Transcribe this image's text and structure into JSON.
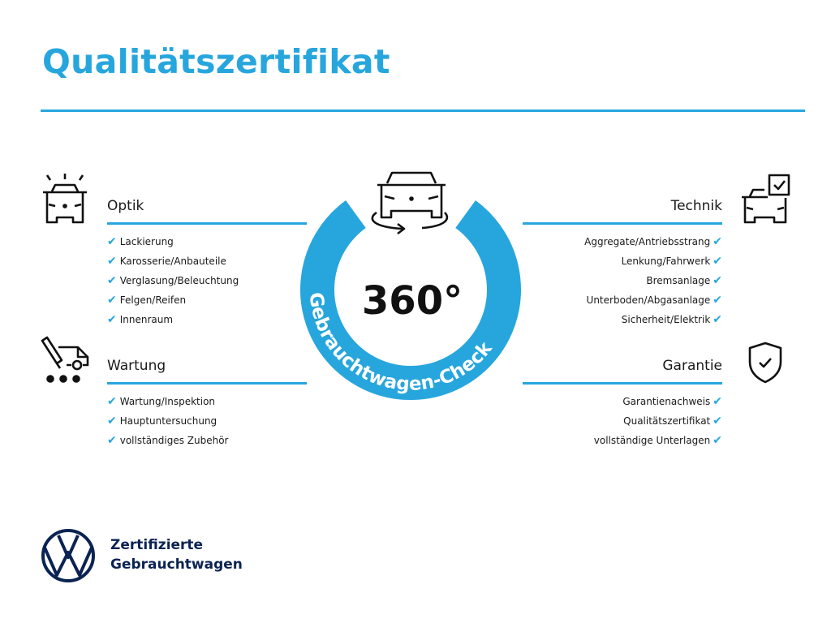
{
  "title": "Qualitätszertifikat",
  "accent_color": "#27a6dd",
  "center": {
    "value": "360°",
    "ring_text": "Gebrauchtwagen-Check",
    "icon": "car-rotate-icon"
  },
  "sections": {
    "optik": {
      "label": "Optik",
      "icon": "car-lights-icon",
      "items": [
        "Lackierung",
        "Karosserie/Anbauteile",
        "Verglasung/Beleuchtung",
        "Felgen/Reifen",
        "Innenraum"
      ]
    },
    "wartung": {
      "label": "Wartung",
      "icon": "service-van-icon",
      "items": [
        "Wartung/Inspektion",
        "Hauptuntersuchung",
        "vollständiges Zubehör"
      ]
    },
    "technik": {
      "label": "Technik",
      "icon": "car-checklist-icon",
      "items": [
        "Aggregate/Antriebsstrang",
        "Lenkung/Fahrwerk",
        "Bremsanlage",
        "Unterboden/Abgasanlage",
        "Sicherheit/Elektrik"
      ]
    },
    "garantie": {
      "label": "Garantie",
      "icon": "shield-check-icon",
      "items": [
        "Garantienachweis",
        "Qualitätszertifikat",
        "vollständige Unterlagen"
      ]
    }
  },
  "check_glyph": "✔",
  "brand": {
    "line1": "Zertifizierte",
    "line2": "Gebrauchtwagen",
    "logo": "vw-logo",
    "color": "#0b2352"
  }
}
